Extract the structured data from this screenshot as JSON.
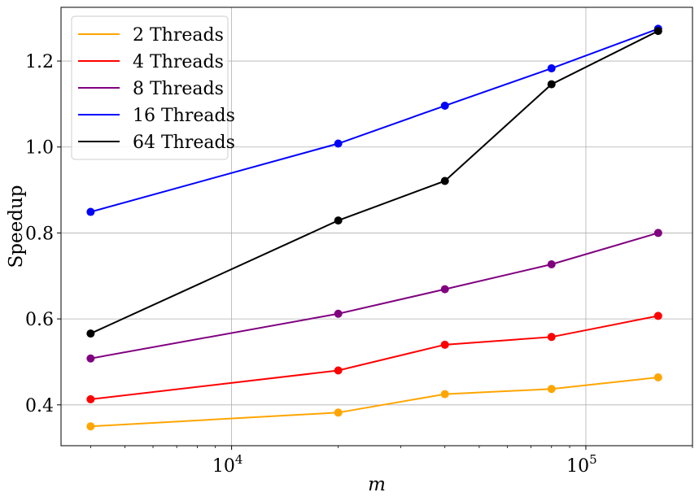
{
  "chart_data": {
    "type": "line",
    "xscale": "log",
    "xlabel": "m",
    "ylabel": "Speedup",
    "xlim": [
      3300,
      200000
    ],
    "ylim": [
      0.305,
      1.325
    ],
    "grid": true,
    "legend_position": "top-left",
    "x": [
      4000,
      20000,
      40000,
      80000,
      160000
    ],
    "xticks": [
      {
        "value": 10000,
        "base": "10",
        "exp": "4"
      },
      {
        "value": 100000,
        "base": "10",
        "exp": "5"
      }
    ],
    "yticks": [
      {
        "value": 0.4,
        "label": "0.4"
      },
      {
        "value": 0.6,
        "label": "0.6"
      },
      {
        "value": 0.8,
        "label": "0.8"
      },
      {
        "value": 1.0,
        "label": "1.0"
      },
      {
        "value": 1.2,
        "label": "1.2"
      }
    ],
    "series": [
      {
        "name": "2 Threads",
        "color": "#ffa500",
        "values": [
          0.35,
          0.382,
          0.425,
          0.437,
          0.464
        ]
      },
      {
        "name": "4 Threads",
        "color": "#ff0000",
        "values": [
          0.413,
          0.48,
          0.54,
          0.558,
          0.607
        ]
      },
      {
        "name": "8 Threads",
        "color": "#800080",
        "values": [
          0.508,
          0.612,
          0.669,
          0.727,
          0.8
        ]
      },
      {
        "name": "16 Threads",
        "color": "#0000ff",
        "values": [
          0.849,
          1.008,
          1.096,
          1.183,
          1.275
        ]
      },
      {
        "name": "64 Threads",
        "color": "#000000",
        "values": [
          0.566,
          0.829,
          0.921,
          1.146,
          1.27
        ]
      }
    ]
  }
}
